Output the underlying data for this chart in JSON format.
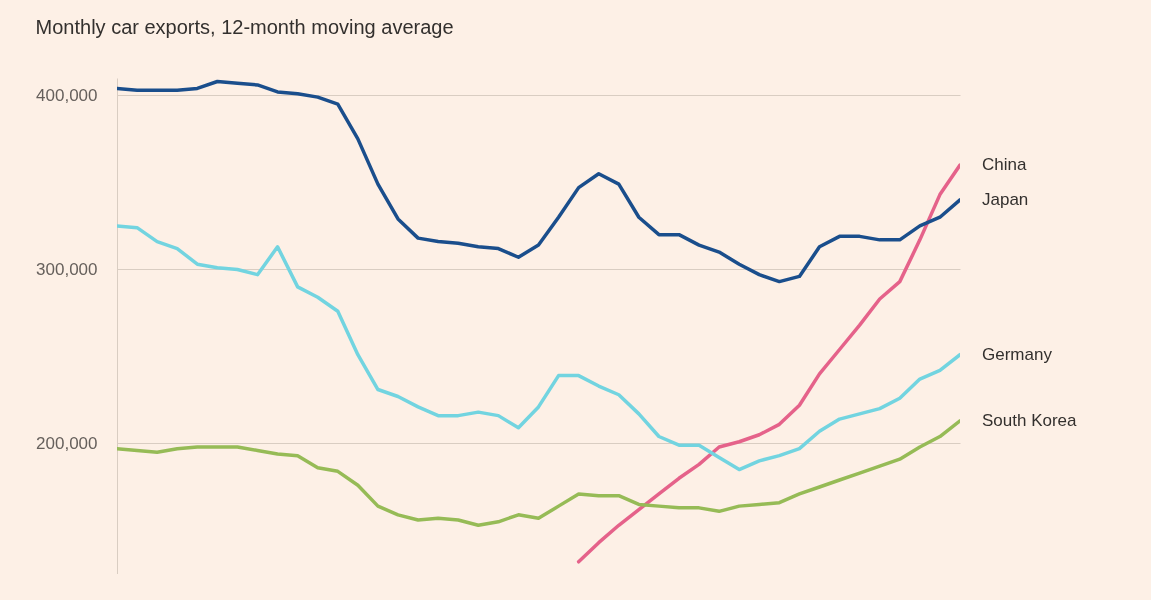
{
  "chart_data": {
    "type": "line",
    "title": "Monthly car exports, 12-month moving average",
    "categories": [
      null,
      null,
      null,
      null,
      null,
      null,
      null,
      null,
      null,
      null,
      null,
      null,
      null,
      null,
      null,
      null,
      null,
      null,
      null,
      null,
      null,
      null,
      null,
      null,
      null,
      null,
      null,
      null,
      null,
      null,
      null,
      null,
      null,
      null,
      null,
      null,
      null,
      null,
      null,
      null,
      null,
      null,
      null
    ],
    "series": [
      {
        "name": "China",
        "color": "#e5628a",
        "values": [
          null,
          null,
          null,
          null,
          null,
          null,
          null,
          null,
          null,
          null,
          null,
          null,
          null,
          null,
          null,
          null,
          null,
          null,
          null,
          null,
          null,
          null,
          null,
          132000,
          143000,
          153000,
          162000,
          171000,
          180000,
          188000,
          198000,
          201000,
          205000,
          211000,
          222000,
          240000,
          254000,
          268000,
          283000,
          293000,
          317000,
          343000,
          360000
        ]
      },
      {
        "name": "Japan",
        "color": "#1a4e8c",
        "values": [
          404000,
          403000,
          403000,
          403000,
          404000,
          408000,
          407000,
          406000,
          402000,
          401000,
          399000,
          395000,
          375000,
          349000,
          329000,
          318000,
          316000,
          315000,
          313000,
          312000,
          307000,
          314000,
          330000,
          347000,
          355000,
          349000,
          330000,
          320000,
          320000,
          314000,
          310000,
          303000,
          297000,
          293000,
          296000,
          313000,
          319000,
          319000,
          317000,
          317000,
          325000,
          330000,
          340000
        ]
      },
      {
        "name": "Germany",
        "color": "#72d4e0",
        "values": [
          325000,
          324000,
          316000,
          312000,
          303000,
          301000,
          300000,
          297000,
          313000,
          290000,
          284000,
          276000,
          251000,
          231000,
          227000,
          221000,
          216000,
          216000,
          218000,
          216000,
          209000,
          221000,
          239000,
          239000,
          233000,
          228000,
          217000,
          204000,
          199000,
          199000,
          192000,
          185000,
          190000,
          193000,
          197000,
          207000,
          214000,
          217000,
          220000,
          226000,
          237000,
          242000,
          251000
        ]
      },
      {
        "name": "South Korea",
        "color": "#96bb56",
        "values": [
          197000,
          196000,
          195000,
          197000,
          198000,
          198000,
          198000,
          196000,
          194000,
          193000,
          186000,
          184000,
          176000,
          164000,
          159000,
          156000,
          157000,
          156000,
          153000,
          155000,
          159000,
          157000,
          164000,
          171000,
          170000,
          170000,
          165000,
          164000,
          163000,
          163000,
          161000,
          164000,
          165000,
          166000,
          171000,
          175000,
          179000,
          183000,
          187000,
          191000,
          198000,
          204000,
          213000
        ]
      }
    ],
    "ylim": [
      125000,
      410000
    ],
    "yticks": [
      {
        "value": 200000,
        "label": "200,000"
      },
      {
        "value": 300000,
        "label": "300,000"
      },
      {
        "value": 400000,
        "label": "400,000"
      }
    ],
    "grid": "y"
  }
}
